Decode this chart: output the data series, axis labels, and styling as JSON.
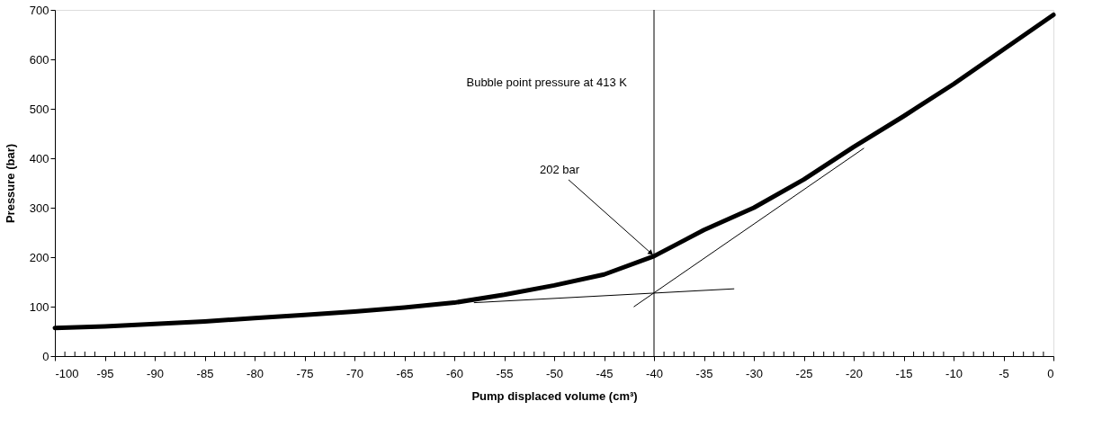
{
  "chart_data": {
    "type": "line",
    "xlabel": "Pump displaced volume (cm³)",
    "ylabel": "Pressure (bar)",
    "series": [
      {
        "color": "#000000",
        "x": [
          -100,
          -95,
          -90,
          -85,
          -80,
          -75,
          -70,
          -65,
          -60,
          -55,
          -50,
          -45,
          -40,
          -35,
          -30,
          -25,
          -20,
          -15,
          -10,
          -5,
          0
        ],
        "values": [
          57,
          60,
          65,
          70,
          77,
          83,
          90,
          98,
          108,
          124,
          143,
          165,
          202,
          255,
          300,
          357,
          423,
          485,
          550,
          620,
          690
        ]
      },
      {
        "color": "#000000",
        "x": [
          -58,
          -32
        ],
        "values": [
          108,
          136
        ]
      },
      {
        "color": "#000000",
        "x": [
          -42,
          -19
        ],
        "values": [
          100,
          420
        ]
      }
    ],
    "xlim": [
      -100,
      0
    ],
    "ylim": [
      0,
      700
    ],
    "xticks": [
      -100,
      {
        "value": -99,
        "label": null
      },
      {
        "value": -98,
        "label": null
      },
      {
        "value": -97,
        "label": null
      },
      {
        "value": -96,
        "label": null
      },
      -95,
      {
        "value": -94,
        "label": null
      },
      {
        "value": -93,
        "label": null
      },
      {
        "value": -92,
        "label": null
      },
      {
        "value": -91,
        "label": null
      },
      -90,
      {
        "value": -89,
        "label": null
      },
      {
        "value": -88,
        "label": null
      },
      {
        "value": -87,
        "label": null
      },
      {
        "value": -86,
        "label": null
      },
      -85,
      {
        "value": -84,
        "label": null
      },
      {
        "value": -83,
        "label": null
      },
      {
        "value": -82,
        "label": null
      },
      {
        "value": -81,
        "label": null
      },
      -80,
      {
        "value": -79,
        "label": null
      },
      {
        "value": -78,
        "label": null
      },
      {
        "value": -77,
        "label": null
      },
      {
        "value": -76,
        "label": null
      },
      -75,
      {
        "value": -74,
        "label": null
      },
      {
        "value": -73,
        "label": null
      },
      {
        "value": -72,
        "label": null
      },
      {
        "value": -71,
        "label": null
      },
      -70,
      {
        "value": -69,
        "label": null
      },
      {
        "value": -68,
        "label": null
      },
      {
        "value": -67,
        "label": null
      },
      {
        "value": -66,
        "label": null
      },
      -65,
      {
        "value": -64,
        "label": null
      },
      {
        "value": -63,
        "label": null
      },
      {
        "value": -62,
        "label": null
      },
      {
        "value": -61,
        "label": null
      },
      -60,
      {
        "value": -59,
        "label": null
      },
      {
        "value": -58,
        "label": null
      },
      {
        "value": -57,
        "label": null
      },
      {
        "value": -56,
        "label": null
      },
      -55,
      {
        "value": -54,
        "label": null
      },
      {
        "value": -53,
        "label": null
      },
      {
        "value": -52,
        "label": null
      },
      {
        "value": -51,
        "label": null
      },
      -50,
      {
        "value": -49,
        "label": null
      },
      {
        "value": -48,
        "label": null
      },
      {
        "value": -47,
        "label": null
      },
      {
        "value": -46,
        "label": null
      },
      -45,
      {
        "value": -44,
        "label": null
      },
      {
        "value": -43,
        "label": null
      },
      {
        "value": -42,
        "label": null
      },
      {
        "value": -41,
        "label": null
      },
      -40,
      {
        "value": -39,
        "label": null
      },
      {
        "value": -38,
        "label": null
      },
      {
        "value": -37,
        "label": null
      },
      {
        "value": -36,
        "label": null
      },
      -35,
      {
        "value": -34,
        "label": null
      },
      {
        "value": -33,
        "label": null
      },
      {
        "value": -32,
        "label": null
      },
      {
        "value": -31,
        "label": null
      },
      -30,
      {
        "value": -29,
        "label": null
      },
      {
        "value": -28,
        "label": null
      },
      {
        "value": -27,
        "label": null
      },
      {
        "value": -26,
        "label": null
      },
      -25,
      {
        "value": -24,
        "label": null
      },
      {
        "value": -23,
        "label": null
      },
      {
        "value": -22,
        "label": null
      },
      {
        "value": -21,
        "label": null
      },
      -20,
      {
        "value": -19,
        "label": null
      },
      {
        "value": -18,
        "label": null
      },
      {
        "value": -17,
        "label": null
      },
      {
        "value": -16,
        "label": null
      },
      -15,
      {
        "value": -14,
        "label": null
      },
      {
        "value": -13,
        "label": null
      },
      {
        "value": -12,
        "label": null
      },
      {
        "value": -11,
        "label": null
      },
      -10,
      {
        "value": -9,
        "label": null
      },
      {
        "value": -8,
        "label": null
      },
      {
        "value": -7,
        "label": null
      },
      {
        "value": -6,
        "label": null
      },
      -5,
      {
        "value": -4,
        "label": null
      },
      {
        "value": -3,
        "label": null
      },
      {
        "value": -2,
        "label": null
      },
      {
        "value": -1,
        "label": null
      },
      0
    ],
    "yticks": [
      0,
      100,
      200,
      300,
      400,
      500,
      600,
      700
    ],
    "ref_lines": [
      {
        "axis": "x",
        "value": -40,
        "label": "Bubble point pressure at 413 K",
        "color": "#000000"
      }
    ],
    "annotations": [
      {
        "text": "202 bar",
        "x": -40,
        "y": 202
      }
    ],
    "grid": false,
    "marker": "none",
    "line_style": "solid"
  }
}
